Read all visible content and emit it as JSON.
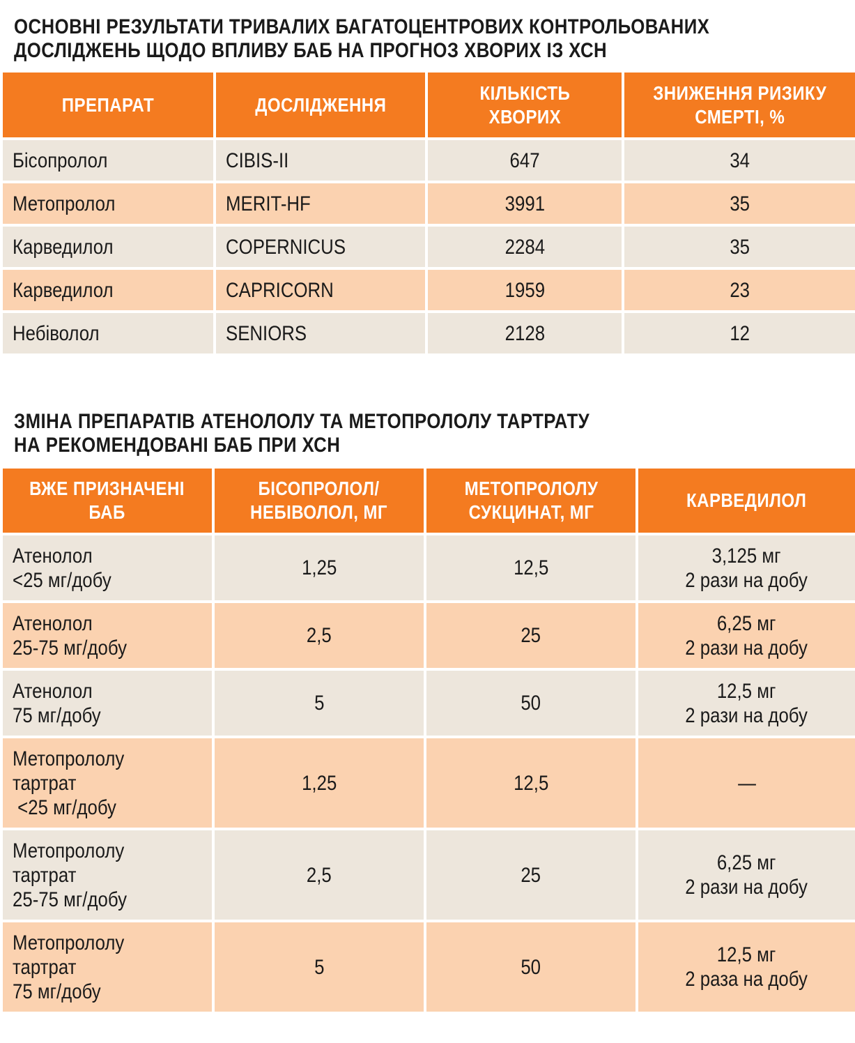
{
  "table1": {
    "title_lines": [
      "ОСНОВНІ РЕЗУЛЬТАТИ ТРИВАЛИХ БАГАТОЦЕНТРОВИХ КОНТРОЛЬОВАНИХ",
      "ДОСЛІДЖЕНЬ ЩОДО ВПЛИВУ БАБ НА ПРОГНОЗ ХВОРИХ ІЗ ХСН"
    ],
    "headers": [
      [
        "ПРЕПАРАТ"
      ],
      [
        "ДОСЛІДЖЕННЯ"
      ],
      [
        "КІЛЬКІСТЬ",
        "ХВОРИХ"
      ],
      [
        "ЗНИЖЕННЯ РИЗИКУ",
        "СМЕРТІ, %"
      ]
    ],
    "rows": [
      {
        "drug": "Бісопролол",
        "study": "CIBIS-II",
        "patients": "647",
        "risk_reduction": "34"
      },
      {
        "drug": "Метопролол",
        "study": "MERIT-HF",
        "patients": "3991",
        "risk_reduction": "35"
      },
      {
        "drug": "Карведилол",
        "study": "COPERNICUS",
        "patients": "2284",
        "risk_reduction": "35"
      },
      {
        "drug": "Карведилол",
        "study": "CAPRICORN",
        "patients": "1959",
        "risk_reduction": "23"
      },
      {
        "drug": "Небіволол",
        "study": "SENIORS",
        "patients": "2128",
        "risk_reduction": "12"
      }
    ]
  },
  "table2": {
    "title_lines": [
      "ЗМІНА ПРЕПАРАТІВ АТЕНОЛОЛУ ТА МЕТОПРОЛОЛУ ТАРТРАТУ",
      "НА РЕКОМЕНДОВАНІ БАБ ПРИ ХСН"
    ],
    "headers": [
      [
        "ВЖЕ ПРИЗНАЧЕНІ",
        "БАБ"
      ],
      [
        "БІСОПРОЛОЛ/",
        "НЕБІВОЛОЛ, МГ"
      ],
      [
        "МЕТОПРОЛОЛУ",
        "СУКЦИНАТ, МГ"
      ],
      [
        "КАРВЕДИЛОЛ"
      ]
    ],
    "rows": [
      {
        "current": [
          "Атенолол",
          "<25 мг/добу"
        ],
        "bisoprolol": "1,25",
        "metoprolol": "12,5",
        "carvedilol": [
          "3,125 мг",
          "2 рази на добу"
        ]
      },
      {
        "current": [
          "Атенолол",
          "25-75 мг/добу"
        ],
        "bisoprolol": "2,5",
        "metoprolol": "25",
        "carvedilol": [
          "6,25 мг",
          "2 рази на добу"
        ]
      },
      {
        "current": [
          "Атенолол",
          "75 мг/добу"
        ],
        "bisoprolol": "5",
        "metoprolol": "50",
        "carvedilol": [
          "12,5 мг",
          "2 рази на добу"
        ]
      },
      {
        "current": [
          "Метопрололу",
          "тартрат",
          " <25 мг/добу"
        ],
        "bisoprolol": "1,25",
        "metoprolol": "12,5",
        "carvedilol": [
          "—"
        ]
      },
      {
        "current": [
          "Метопрололу",
          "тартрат",
          "25-75 мг/добу"
        ],
        "bisoprolol": "2,5",
        "metoprolol": "25",
        "carvedilol": [
          "6,25 мг",
          "2 рази на добу"
        ]
      },
      {
        "current": [
          "Метопрололу",
          "тартрат",
          "75 мг/добу"
        ],
        "bisoprolol": "5",
        "metoprolol": "50",
        "carvedilol": [
          "12,5 мг",
          "2 раза на добу"
        ]
      }
    ]
  },
  "colors": {
    "header_orange": "#f47b20",
    "row_beige": "#ede6dc",
    "row_peach": "#fbd2b0"
  }
}
